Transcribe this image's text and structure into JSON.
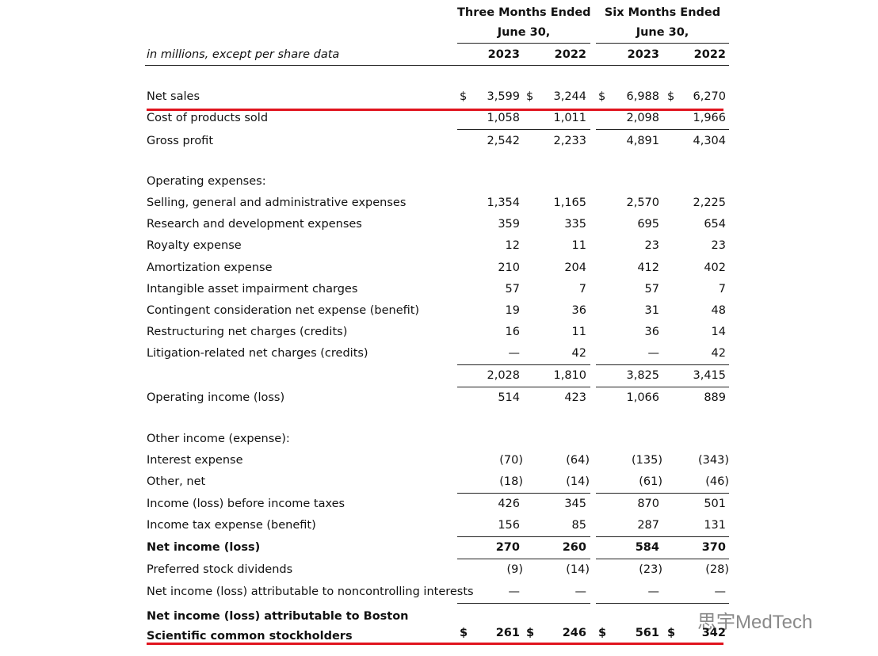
{
  "units_note": "in millions, except per share data",
  "periods": [
    {
      "title": "Three Months Ended",
      "subtitle": "June 30,",
      "years": [
        "2023",
        "2022"
      ]
    },
    {
      "title": "Six Months Ended",
      "subtitle": "June 30,",
      "years": [
        "2023",
        "2022"
      ]
    }
  ],
  "rows": [
    {
      "label": "Net sales",
      "currency": "$",
      "values": [
        "3,599",
        "3,244",
        "6,988",
        "6,270"
      ]
    },
    {
      "label": "Cost of products sold",
      "values": [
        "1,058",
        "1,011",
        "2,098",
        "1,966"
      ]
    },
    {
      "label": "Gross profit",
      "values": [
        "2,542",
        "2,233",
        "4,891",
        "4,304"
      ]
    },
    {
      "label": "Operating expenses:"
    },
    {
      "label": "Selling, general and administrative expenses",
      "values": [
        "1,354",
        "1,165",
        "2,570",
        "2,225"
      ]
    },
    {
      "label": "Research and development expenses",
      "values": [
        "359",
        "335",
        "695",
        "654"
      ]
    },
    {
      "label": "Royalty expense",
      "values": [
        "12",
        "11",
        "23",
        "23"
      ]
    },
    {
      "label": "Amortization expense",
      "values": [
        "210",
        "204",
        "412",
        "402"
      ]
    },
    {
      "label": "Intangible asset impairment charges",
      "values": [
        "57",
        "7",
        "57",
        "7"
      ]
    },
    {
      "label": "Contingent consideration net expense (benefit)",
      "values": [
        "19",
        "36",
        "31",
        "48"
      ]
    },
    {
      "label": "Restructuring net charges (credits)",
      "values": [
        "16",
        "11",
        "36",
        "14"
      ]
    },
    {
      "label": "Litigation-related net charges (credits)",
      "values": [
        "—",
        "42",
        "—",
        "42"
      ]
    },
    {
      "values": [
        "2,028",
        "1,810",
        "3,825",
        "3,415"
      ]
    },
    {
      "label": "Operating income (loss)",
      "values": [
        "514",
        "423",
        "1,066",
        "889"
      ]
    },
    {
      "label": "Other income (expense):"
    },
    {
      "label": "Interest expense",
      "values": [
        "(70)",
        "(64)",
        "(135)",
        "(343)"
      ]
    },
    {
      "label": "Other, net",
      "values": [
        "(18)",
        "(14)",
        "(61)",
        "(46)"
      ]
    },
    {
      "label": "Income (loss) before income taxes",
      "values": [
        "426",
        "345",
        "870",
        "501"
      ]
    },
    {
      "label": "Income tax expense (benefit)",
      "values": [
        "156",
        "85",
        "287",
        "131"
      ]
    },
    {
      "label": "Net income (loss)",
      "bold": true,
      "values": [
        "270",
        "260",
        "584",
        "370"
      ]
    },
    {
      "label": "Preferred stock dividends",
      "values": [
        "(9)",
        "(14)",
        "(23)",
        "(28)"
      ]
    },
    {
      "label": "Net income (loss) attributable to noncontrolling interests",
      "values": [
        "—",
        "—",
        "—",
        "—"
      ]
    },
    {
      "label": "Net income (loss) attributable to Boston Scientific common stockholders",
      "bold": true,
      "currency": "$",
      "values": [
        "261",
        "246",
        "561",
        "342"
      ]
    }
  ],
  "watermark": "思宇MedTech"
}
